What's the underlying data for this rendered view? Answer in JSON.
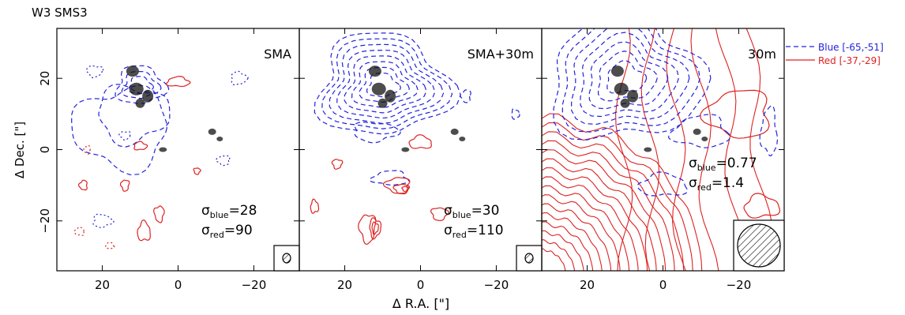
{
  "figure": {
    "title": "W3 SMS3",
    "xlabel": "Δ R.A. [\"]",
    "ylabel": "Δ Dec. [\"]",
    "legend": {
      "position": "right",
      "items": [
        {
          "label": "Blue [-65,-51]",
          "color": "#2222dd",
          "style": "dashed"
        },
        {
          "label": "Red [-37,-29]",
          "color": "#dd2222",
          "style": "solid"
        }
      ]
    },
    "colors": {
      "blue": "#2222dd",
      "red": "#dd2222"
    }
  },
  "chart_data": [
    {
      "type": "contour",
      "panel_label": "SMA",
      "xlim": [
        32,
        -32
      ],
      "ylim": [
        -34,
        34
      ],
      "xticks": [
        20,
        0,
        -20
      ],
      "xtick_labels": [
        "20",
        "0",
        "−20"
      ],
      "yticks": [
        20,
        0,
        -20
      ],
      "ytick_labels": [
        "20",
        "0",
        "−20"
      ],
      "sigma_blue": "28",
      "sigma_red": "90",
      "beam": "small"
    },
    {
      "type": "contour",
      "panel_label": "SMA+30m",
      "xlim": [
        32,
        -32
      ],
      "ylim": [
        -34,
        34
      ],
      "xticks": [
        20,
        0,
        -20
      ],
      "xtick_labels": [
        "20",
        "0",
        "−20"
      ],
      "yticks": [
        20,
        0,
        -20
      ],
      "sigma_blue": "30",
      "sigma_red": "110",
      "beam": "small"
    },
    {
      "type": "contour",
      "panel_label": "30m",
      "xlim": [
        32,
        -32
      ],
      "ylim": [
        -34,
        34
      ],
      "xticks": [
        20,
        0,
        -20
      ],
      "xtick_labels": [
        "20",
        "0",
        "−20"
      ],
      "yticks": [
        20,
        0,
        -20
      ],
      "sigma_blue": "0.77",
      "sigma_red": "1.4",
      "beam": "large"
    }
  ]
}
